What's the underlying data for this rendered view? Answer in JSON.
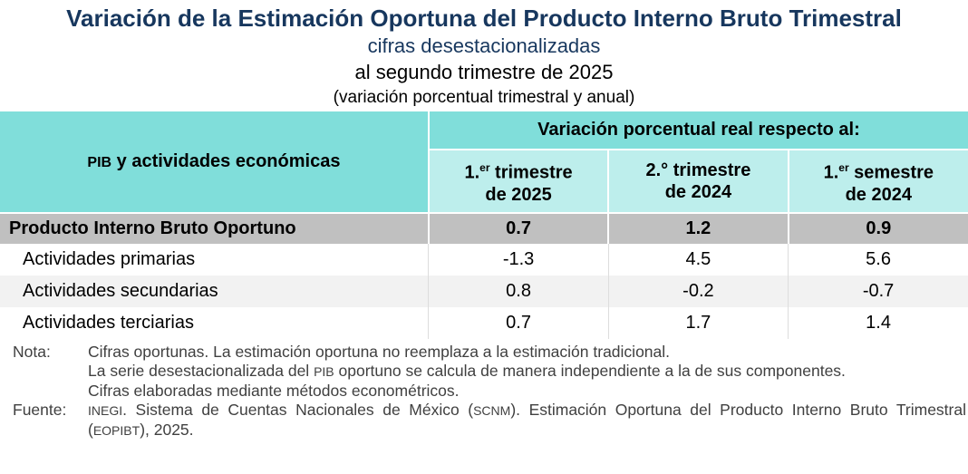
{
  "title": "Variación de la Estimación Oportuna del Producto Interno Bruto Trimestral",
  "subtitle1": "cifras desestacionalizadas",
  "subtitle2": "al segundo trimestre de 2025",
  "subtitle3": "(variación porcentual trimestral y anual)",
  "table": {
    "row_header_abbr": "PIB",
    "row_header_rest": " y actividades económicas",
    "group_header": "Variación porcentual real respecto al:",
    "columns": [
      {
        "num": "1.",
        "sup": "er",
        "word": " trimestre",
        "line2": "de 2025"
      },
      {
        "num": "2.°",
        "sup": "",
        "word": " trimestre",
        "line2": "de 2024"
      },
      {
        "num": "1.",
        "sup": "er",
        "word": " semestre",
        "line2": "de 2024"
      }
    ],
    "rows": [
      {
        "label": "Producto Interno Bruto Oportuno",
        "values": [
          "0.7",
          "1.2",
          "0.9"
        ]
      },
      {
        "label": "Actividades primarias",
        "values": [
          "-1.3",
          "4.5",
          "5.6"
        ]
      },
      {
        "label": "Actividades secundarias",
        "values": [
          "0.8",
          "-0.2",
          "-0.7"
        ]
      },
      {
        "label": "Actividades terciarias",
        "values": [
          "0.7",
          "1.7",
          "1.4"
        ]
      }
    ]
  },
  "notes": {
    "nota_label": "Nota:",
    "nota1": "Cifras oportunas. La estimación oportuna no reemplaza a la estimación tradicional.",
    "nota2a": "La serie desestacionalizada del ",
    "nota2abbr": "PIB",
    "nota2b": " oportuno se calcula de manera independiente a la de sus componentes.",
    "nota3": "Cifras elaboradas mediante métodos econométricos.",
    "fuente_label": "Fuente:",
    "fuente_abbr1": "INEGI",
    "fuente_a": ". Sistema de Cuentas Nacionales de México (",
    "fuente_abbr2": "SCNM",
    "fuente_b": "). Estimación Oportuna del Producto Interno Bruto Trimestral (",
    "fuente_abbr3": "EOPIBT",
    "fuente_c": "), 2025."
  }
}
